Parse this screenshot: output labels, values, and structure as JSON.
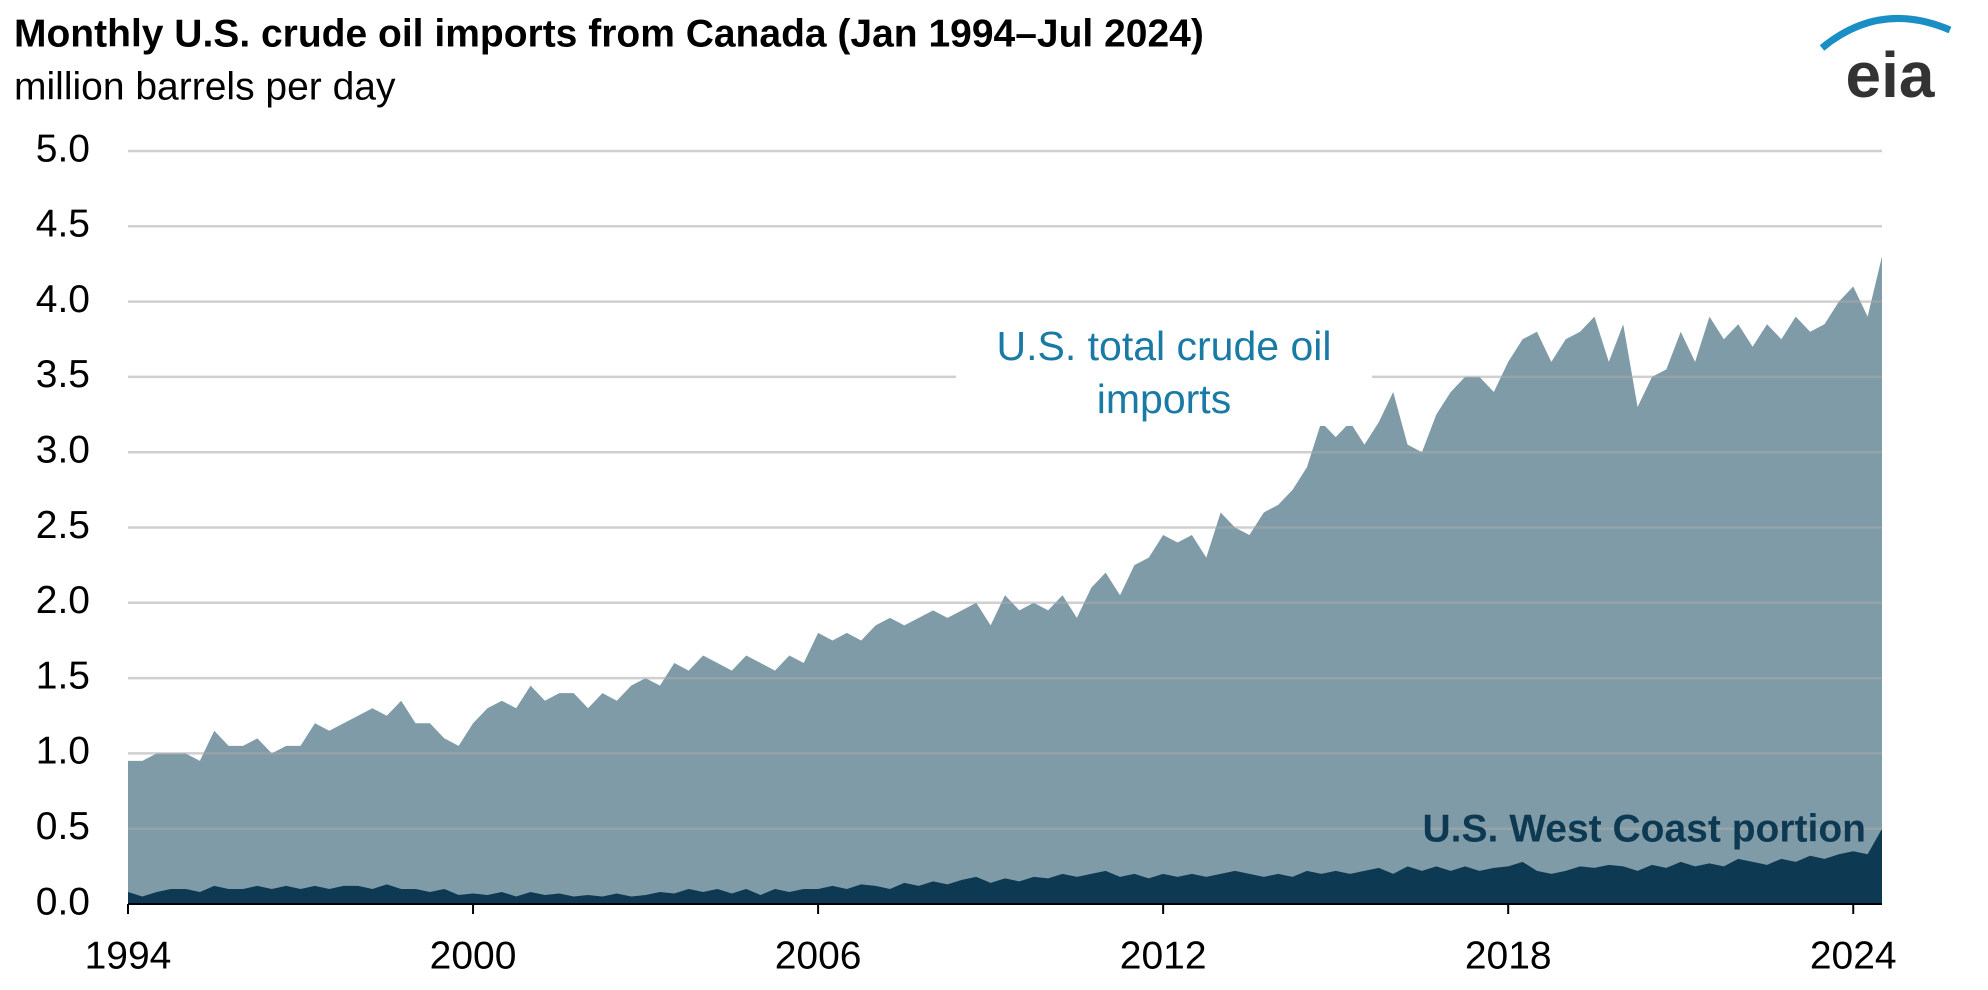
{
  "chart_data": {
    "type": "area",
    "title": "Monthly U.S. crude oil imports from Canada (Jan 1994–Jul 2024)",
    "subtitle": "million barrels per day",
    "logo": "eia",
    "x": [
      1994,
      1994.25,
      1994.5,
      1994.75,
      1995,
      1995.25,
      1995.5,
      1995.75,
      1996,
      1996.25,
      1996.5,
      1996.75,
      1997,
      1997.25,
      1997.5,
      1997.75,
      1998,
      1998.25,
      1998.5,
      1998.75,
      1999,
      1999.25,
      1999.5,
      1999.75,
      2000,
      2000.25,
      2000.5,
      2000.75,
      2001,
      2001.25,
      2001.5,
      2001.75,
      2002,
      2002.25,
      2002.5,
      2002.75,
      2003,
      2003.25,
      2003.5,
      2003.75,
      2004,
      2004.25,
      2004.5,
      2004.75,
      2005,
      2005.25,
      2005.5,
      2005.75,
      2006,
      2006.25,
      2006.5,
      2006.75,
      2007,
      2007.25,
      2007.5,
      2007.75,
      2008,
      2008.25,
      2008.5,
      2008.75,
      2009,
      2009.25,
      2009.5,
      2009.75,
      2010,
      2010.25,
      2010.5,
      2010.75,
      2011,
      2011.25,
      2011.5,
      2011.75,
      2012,
      2012.25,
      2012.5,
      2012.75,
      2013,
      2013.25,
      2013.5,
      2013.75,
      2014,
      2014.25,
      2014.5,
      2014.75,
      2015,
      2015.25,
      2015.5,
      2015.75,
      2016,
      2016.25,
      2016.5,
      2016.75,
      2017,
      2017.25,
      2017.5,
      2017.75,
      2018,
      2018.25,
      2018.5,
      2018.75,
      2019,
      2019.25,
      2019.5,
      2019.75,
      2020,
      2020.25,
      2020.5,
      2020.75,
      2021,
      2021.25,
      2021.5,
      2021.75,
      2022,
      2022.25,
      2022.5,
      2022.75,
      2023,
      2023.25,
      2023.5,
      2023.75,
      2024,
      2024.25,
      2024.5
    ],
    "series": [
      {
        "name": "U.S. total crude oil imports",
        "color": "#7f9ba7",
        "values": [
          0.95,
          0.95,
          1.0,
          1.0,
          1.0,
          0.95,
          1.15,
          1.05,
          1.05,
          1.1,
          1.0,
          1.05,
          1.05,
          1.2,
          1.15,
          1.2,
          1.25,
          1.3,
          1.25,
          1.35,
          1.2,
          1.2,
          1.1,
          1.05,
          1.2,
          1.3,
          1.35,
          1.3,
          1.45,
          1.35,
          1.4,
          1.4,
          1.3,
          1.4,
          1.35,
          1.45,
          1.5,
          1.45,
          1.6,
          1.55,
          1.65,
          1.6,
          1.55,
          1.65,
          1.6,
          1.55,
          1.65,
          1.6,
          1.8,
          1.75,
          1.8,
          1.75,
          1.85,
          1.9,
          1.85,
          1.9,
          1.95,
          1.9,
          1.95,
          2.0,
          1.85,
          2.05,
          1.95,
          2.0,
          1.95,
          2.05,
          1.9,
          2.1,
          2.2,
          2.05,
          2.25,
          2.3,
          2.45,
          2.4,
          2.45,
          2.3,
          2.6,
          2.5,
          2.45,
          2.6,
          2.65,
          2.75,
          2.9,
          3.2,
          3.1,
          3.2,
          3.05,
          3.2,
          3.4,
          3.05,
          3.0,
          3.25,
          3.4,
          3.5,
          3.5,
          3.4,
          3.6,
          3.75,
          3.8,
          3.6,
          3.75,
          3.8,
          3.9,
          3.6,
          3.85,
          3.3,
          3.5,
          3.55,
          3.8,
          3.6,
          3.9,
          3.75,
          3.85,
          3.7,
          3.85,
          3.75,
          3.9,
          3.8,
          3.85,
          4.0,
          4.1,
          3.9,
          4.3
        ]
      },
      {
        "name": "U.S. West Coast portion",
        "color": "#0d3a52",
        "values": [
          0.08,
          0.05,
          0.08,
          0.1,
          0.1,
          0.08,
          0.12,
          0.1,
          0.1,
          0.12,
          0.1,
          0.12,
          0.1,
          0.12,
          0.1,
          0.12,
          0.12,
          0.1,
          0.13,
          0.1,
          0.1,
          0.08,
          0.1,
          0.06,
          0.07,
          0.06,
          0.08,
          0.05,
          0.08,
          0.06,
          0.07,
          0.05,
          0.06,
          0.05,
          0.07,
          0.05,
          0.06,
          0.08,
          0.07,
          0.1,
          0.08,
          0.1,
          0.07,
          0.1,
          0.06,
          0.1,
          0.08,
          0.1,
          0.1,
          0.12,
          0.1,
          0.13,
          0.12,
          0.1,
          0.14,
          0.12,
          0.15,
          0.13,
          0.16,
          0.18,
          0.14,
          0.17,
          0.15,
          0.18,
          0.17,
          0.2,
          0.18,
          0.2,
          0.22,
          0.18,
          0.2,
          0.17,
          0.2,
          0.18,
          0.2,
          0.18,
          0.2,
          0.22,
          0.2,
          0.18,
          0.2,
          0.18,
          0.22,
          0.2,
          0.22,
          0.2,
          0.22,
          0.24,
          0.2,
          0.25,
          0.22,
          0.25,
          0.22,
          0.25,
          0.22,
          0.24,
          0.25,
          0.28,
          0.22,
          0.2,
          0.22,
          0.25,
          0.24,
          0.26,
          0.25,
          0.22,
          0.26,
          0.24,
          0.28,
          0.25,
          0.27,
          0.25,
          0.3,
          0.28,
          0.26,
          0.3,
          0.28,
          0.32,
          0.3,
          0.33,
          0.35,
          0.33,
          0.5
        ]
      }
    ],
    "xlim": [
      1994,
      2024.5
    ],
    "xticks": [
      1994,
      2000,
      2006,
      2012,
      2018,
      2024
    ],
    "ylim": [
      0,
      5
    ],
    "yticks": [
      {
        "value": 0,
        "label": "0.0"
      },
      {
        "value": 0.5,
        "label": "0.5"
      },
      {
        "value": 1,
        "label": "1.0"
      },
      {
        "value": 1.5,
        "label": "1.5"
      },
      {
        "value": 2,
        "label": "2.0"
      },
      {
        "value": 2.5,
        "label": "2.5"
      },
      {
        "value": 3,
        "label": "3.0"
      },
      {
        "value": 3.5,
        "label": "3.5"
      },
      {
        "value": 4,
        "label": "4.0"
      },
      {
        "value": 4.5,
        "label": "4.5"
      },
      {
        "value": 5,
        "label": "5.0"
      }
    ],
    "grid": true
  }
}
